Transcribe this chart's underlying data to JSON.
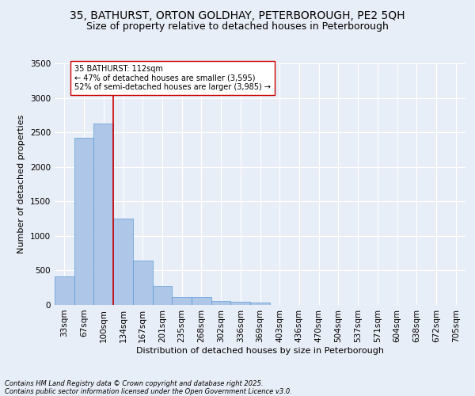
{
  "title_line1": "35, BATHURST, ORTON GOLDHAY, PETERBOROUGH, PE2 5QH",
  "title_line2": "Size of property relative to detached houses in Peterborough",
  "xlabel": "Distribution of detached houses by size in Peterborough",
  "ylabel": "Number of detached properties",
  "categories": [
    "33sqm",
    "67sqm",
    "100sqm",
    "134sqm",
    "167sqm",
    "201sqm",
    "235sqm",
    "268sqm",
    "302sqm",
    "336sqm",
    "369sqm",
    "403sqm",
    "436sqm",
    "470sqm",
    "504sqm",
    "537sqm",
    "571sqm",
    "604sqm",
    "638sqm",
    "672sqm",
    "705sqm"
  ],
  "values": [
    410,
    2420,
    2630,
    1250,
    640,
    270,
    110,
    110,
    55,
    50,
    35,
    0,
    0,
    0,
    0,
    0,
    0,
    0,
    0,
    0,
    0
  ],
  "bar_color": "#aec6e8",
  "bar_edge_color": "#5b9bd5",
  "vline_color": "#cc0000",
  "annotation_text": "35 BATHURST: 112sqm\n← 47% of detached houses are smaller (3,595)\n52% of semi-detached houses are larger (3,985) →",
  "annotation_box_color": "#ffffff",
  "annotation_box_edge": "#cc0000",
  "ylim": [
    0,
    3500
  ],
  "yticks": [
    0,
    500,
    1000,
    1500,
    2000,
    2500,
    3000,
    3500
  ],
  "background_color": "#e8eef7",
  "plot_background": "#e8eef7",
  "grid_color": "#ffffff",
  "footer_line1": "Contains HM Land Registry data © Crown copyright and database right 2025.",
  "footer_line2": "Contains public sector information licensed under the Open Government Licence v3.0.",
  "title_fontsize": 10,
  "subtitle_fontsize": 9,
  "axis_label_fontsize": 8,
  "tick_fontsize": 7.5,
  "annotation_fontsize": 7,
  "footer_fontsize": 6
}
